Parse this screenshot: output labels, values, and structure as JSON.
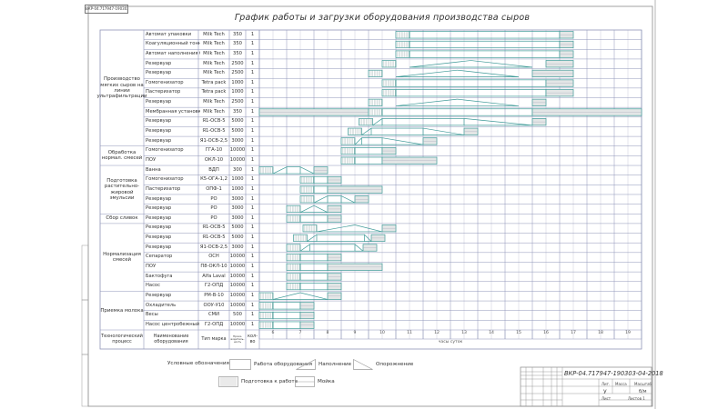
{
  "stamp": "ВКР-04.717947-190303-04-2018",
  "title": "График работы и загрузки оборудования производства сыров",
  "header": {
    "process": "Технологический процесс",
    "equipment": "Наименование оборудования",
    "brand": "Тип марка",
    "capacity": "Произ-водитель-ность",
    "qty": "кол-во"
  },
  "axis": {
    "hours": [
      "6",
      "7",
      "8",
      "9",
      "10",
      "11",
      "12",
      "13",
      "14",
      "15",
      "16",
      "17",
      "18",
      "19"
    ],
    "label": "часы суток",
    "range": [
      6,
      20
    ]
  },
  "groups": [
    {
      "label": "Производство мягких сыров на линии ультрафильтрации",
      "from": 0,
      "to": 11
    },
    {
      "label": "Обработка нормал. смесей",
      "from": 12,
      "to": 13
    },
    {
      "label": "Подготовка растительно-жировой эмульсии",
      "from": 14,
      "to": 18
    },
    {
      "label": "Сбор сливок",
      "from": 19,
      "to": 19
    },
    {
      "label": "Нормализация смесей",
      "from": 20,
      "to": 26
    },
    {
      "label": "Приемка молока",
      "from": 27,
      "to": 30
    }
  ],
  "rows": [
    {
      "name": "Автомат упаковки",
      "brand": "Milk Tech",
      "cap": "350",
      "qty": "1",
      "seg": [
        [
          "p",
          11,
          11.5
        ],
        [
          "w",
          11.5,
          17
        ],
        [
          "m",
          17,
          17.5
        ]
      ]
    },
    {
      "name": "Коагуляционный тоннель",
      "brand": "Milk Tech",
      "cap": "350",
      "qty": "1",
      "seg": [
        [
          "p",
          11,
          11.5
        ],
        [
          "w",
          11.5,
          17
        ],
        [
          "m",
          17,
          17.5
        ]
      ]
    },
    {
      "name": "Автомат наполнения банок",
      "brand": "Milk Tech",
      "cap": "350",
      "qty": "1",
      "seg": [
        [
          "p",
          11,
          11.5
        ],
        [
          "w",
          11.5,
          17
        ],
        [
          "m",
          17,
          17.5
        ]
      ]
    },
    {
      "name": "Резервуар",
      "brand": "Milk Tech",
      "cap": "2500",
      "qty": "1",
      "seg": [
        [
          "p",
          10.5,
          11
        ],
        [
          "f",
          11.5,
          13.75
        ],
        [
          "e",
          13.75,
          16
        ],
        [
          "m",
          16.5,
          17.5
        ]
      ]
    },
    {
      "name": "Резервуар",
      "brand": "Milk Tech",
      "cap": "2500",
      "qty": "1",
      "seg": [
        [
          "p",
          10,
          10.5
        ],
        [
          "f",
          11,
          13.25
        ],
        [
          "e",
          13.25,
          15.5
        ],
        [
          "m",
          16,
          17.5
        ]
      ]
    },
    {
      "name": "Гомогенизатор",
      "brand": "Tetra pack",
      "cap": "1000",
      "qty": "1",
      "seg": [
        [
          "p",
          10.5,
          11
        ],
        [
          "w",
          11,
          16.5
        ],
        [
          "m",
          16.5,
          17.5
        ]
      ]
    },
    {
      "name": "Пастеризатор",
      "brand": "Tetra pack",
      "cap": "1000",
      "qty": "1",
      "seg": [
        [
          "p",
          10.5,
          11
        ],
        [
          "w",
          11,
          16.5
        ],
        [
          "m",
          16.5,
          17.5
        ]
      ]
    },
    {
      "name": "Резервуар",
      "brand": "Milk Tech",
      "cap": "2500",
      "qty": "1",
      "seg": [
        [
          "p",
          10,
          10.5
        ],
        [
          "f",
          11,
          13.25
        ],
        [
          "e",
          13.25,
          15.5
        ],
        [
          "m",
          16,
          16.5
        ]
      ]
    },
    {
      "name": "Мембранная установка",
      "brand": "Milk Tech",
      "cap": "350",
      "qty": "1",
      "seg": [
        [
          "m",
          6,
          10
        ],
        [
          "p",
          10,
          10.5
        ],
        [
          "w",
          10.5,
          16
        ],
        [
          "m",
          16,
          20
        ]
      ]
    },
    {
      "name": "Резервуар",
      "brand": "Я1-ОСВ-5",
      "cap": "5000",
      "qty": "1",
      "seg": [
        [
          "p",
          9.65,
          10.15
        ],
        [
          "f",
          10.15,
          10.5
        ],
        [
          "w",
          10.5,
          13.5
        ],
        [
          "e",
          13.5,
          16
        ],
        [
          "m",
          16,
          16.5
        ]
      ]
    },
    {
      "name": "Резервуар",
      "brand": "Я1-ОСВ-5",
      "cap": "5000",
      "qty": "1",
      "seg": [
        [
          "p",
          9.25,
          9.75
        ],
        [
          "f",
          9.75,
          10.1
        ],
        [
          "w",
          10.1,
          12
        ],
        [
          "e",
          12,
          13.5
        ],
        [
          "m",
          13.5,
          14
        ]
      ]
    },
    {
      "name": "Резервуар",
      "brand": "Я1-ОСВ-2,5",
      "cap": "3000",
      "qty": "1",
      "seg": [
        [
          "p",
          9,
          9.5
        ],
        [
          "f",
          9.5,
          9.75
        ],
        [
          "w",
          9.75,
          10.5
        ],
        [
          "e",
          10.5,
          12
        ],
        [
          "m",
          12,
          12.5
        ]
      ]
    },
    {
      "name": "Гомогенизатор",
      "brand": "ГГА-10",
      "cap": "10000",
      "qty": "1",
      "seg": [
        [
          "p",
          9,
          9.5
        ],
        [
          "w",
          9.5,
          10.5
        ],
        [
          "m",
          10.5,
          11
        ]
      ]
    },
    {
      "name": "ПОУ",
      "brand": "ОКЛ-10",
      "cap": "10000",
      "qty": "1",
      "seg": [
        [
          "p",
          9,
          9.5
        ],
        [
          "w",
          9.5,
          10.5
        ],
        [
          "m",
          10.5,
          12.5
        ]
      ]
    },
    {
      "name": "Ванна",
      "brand": "ВДП",
      "cap": "300",
      "qty": "1",
      "seg": [
        [
          "p",
          6,
          6.5
        ],
        [
          "f",
          6.5,
          7
        ],
        [
          "w",
          7,
          7.5
        ],
        [
          "e",
          7.5,
          8
        ],
        [
          "m",
          8,
          8.5
        ]
      ]
    },
    {
      "name": "Гомогенизатор",
      "brand": "К5-ОГА-1,2",
      "cap": "1000",
      "qty": "1",
      "seg": [
        [
          "p",
          7.5,
          8
        ],
        [
          "w",
          8,
          8.5
        ],
        [
          "m",
          8.5,
          9
        ]
      ]
    },
    {
      "name": "Пастеризатор",
      "brand": "ОПФ-1",
      "cap": "1000",
      "qty": "1",
      "seg": [
        [
          "p",
          7.5,
          8
        ],
        [
          "w",
          8,
          8.5
        ],
        [
          "m",
          8.5,
          10.5
        ]
      ]
    },
    {
      "name": "Резервуар",
      "brand": "РО",
      "cap": "3000",
      "qty": "1",
      "seg": [
        [
          "p",
          7.5,
          8
        ],
        [
          "f",
          8,
          8.5
        ],
        [
          "w",
          8.5,
          9
        ],
        [
          "e",
          9,
          9.5
        ],
        [
          "m",
          9.5,
          10
        ]
      ]
    },
    {
      "name": "Резервуар",
      "brand": "РО",
      "cap": "3000",
      "qty": "1",
      "seg": [
        [
          "p",
          7,
          7.5
        ],
        [
          "f",
          7.5,
          8
        ],
        [
          "e",
          8,
          8.5
        ],
        [
          "m",
          8.5,
          9
        ]
      ]
    },
    {
      "name": "Резервуар",
      "brand": "РО",
      "cap": "3000",
      "qty": "1",
      "seg": [
        [
          "p",
          7,
          7.5
        ],
        [
          "w",
          7.5,
          8.5
        ],
        [
          "m",
          8.5,
          9
        ]
      ]
    },
    {
      "name": "Резервуар",
      "brand": "Я1-ОСВ-5",
      "cap": "5000",
      "qty": "1",
      "seg": [
        [
          "p",
          7.6,
          8.1
        ],
        [
          "f",
          8.1,
          9.5
        ],
        [
          "e",
          9.5,
          10.5
        ],
        [
          "m",
          10.5,
          11
        ]
      ]
    },
    {
      "name": "Резервуар",
      "brand": "Я1-ОСВ-5",
      "cap": "5000",
      "qty": "1",
      "seg": [
        [
          "p",
          7.25,
          7.75
        ],
        [
          "f",
          7.75,
          8.1
        ],
        [
          "w",
          8.1,
          9.85
        ],
        [
          "e",
          9.85,
          10.1
        ],
        [
          "m",
          10.1,
          10.6
        ]
      ]
    },
    {
      "name": "Резервуар",
      "brand": "Я1-ОСВ-2,5",
      "cap": "3000",
      "qty": "1",
      "seg": [
        [
          "p",
          7,
          7.5
        ],
        [
          "f",
          7.5,
          7.85
        ],
        [
          "w",
          7.85,
          9.5
        ],
        [
          "e",
          9.5,
          9.8
        ],
        [
          "m",
          9.8,
          10.3
        ]
      ]
    },
    {
      "name": "Сепаратор",
      "brand": "ОСН",
      "cap": "10000",
      "qty": "1",
      "seg": [
        [
          "p",
          7,
          7.5
        ],
        [
          "w",
          7.5,
          8.5
        ],
        [
          "m",
          8.5,
          9
        ]
      ]
    },
    {
      "name": "ПОУ",
      "brand": "П8-ОКЛ-10",
      "cap": "10000",
      "qty": "1",
      "seg": [
        [
          "p",
          7,
          7.5
        ],
        [
          "w",
          7.5,
          8.5
        ],
        [
          "m",
          8.5,
          10.5
        ]
      ]
    },
    {
      "name": "Бактофуга",
      "brand": "Alfa Laval",
      "cap": "10000",
      "qty": "1",
      "seg": [
        [
          "p",
          7,
          7.5
        ],
        [
          "w",
          7.5,
          8.5
        ],
        [
          "m",
          8.5,
          9
        ]
      ]
    },
    {
      "name": "Насос",
      "brand": "Г2-ОПД",
      "cap": "10000",
      "qty": "1",
      "seg": [
        [
          "p",
          7,
          7.5
        ],
        [
          "w",
          7.5,
          8.5
        ],
        [
          "m",
          8.5,
          9
        ]
      ]
    },
    {
      "name": "Резервуар",
      "brand": "РМ-В-10",
      "cap": "10000",
      "qty": "1",
      "seg": [
        [
          "p",
          6,
          6.5
        ],
        [
          "f",
          6.5,
          7.5
        ],
        [
          "e",
          7.5,
          8.5
        ],
        [
          "m",
          8.5,
          9
        ]
      ]
    },
    {
      "name": "Охладитель",
      "brand": "ООУ-У10",
      "cap": "10000",
      "qty": "1",
      "seg": [
        [
          "p",
          6,
          6.5
        ],
        [
          "w",
          6.5,
          7.5
        ],
        [
          "m",
          7.5,
          8
        ]
      ]
    },
    {
      "name": "Весы",
      "brand": "СМИ",
      "cap": "500",
      "qty": "1",
      "seg": [
        [
          "p",
          6,
          6.5
        ],
        [
          "w",
          6.5,
          7.5
        ],
        [
          "m",
          7.5,
          8
        ]
      ]
    },
    {
      "name": "Насос центробежный",
      "brand": "Г2-ОПД",
      "cap": "10000",
      "qty": "1",
      "seg": [
        [
          "p",
          6,
          6.5
        ],
        [
          "w",
          6.5,
          7.5
        ],
        [
          "m",
          7.5,
          8
        ]
      ]
    }
  ],
  "legend": {
    "title": "Условные обозначения",
    "work": "Работа оборудования",
    "fill": "Наполнение",
    "empty": "Опорожнение",
    "prep": "Подготовка к работе",
    "wash": "Мойка"
  },
  "titleblock": {
    "code": "ВКР-04.717947-190303-04-2018",
    "lit": "Лит.",
    "mass": "Масса",
    "scale": "Масштаб",
    "lit_value": "У",
    "scale_value": "б/м",
    "sheet": "Лист",
    "sheets": "Листов 1"
  },
  "colors": {
    "bar": "#3f9a98",
    "grid": "#8f95b8",
    "grid_light": "#c9ccd9",
    "wash_fill": "#e3e6e6",
    "frame": "#8a8a8a"
  }
}
